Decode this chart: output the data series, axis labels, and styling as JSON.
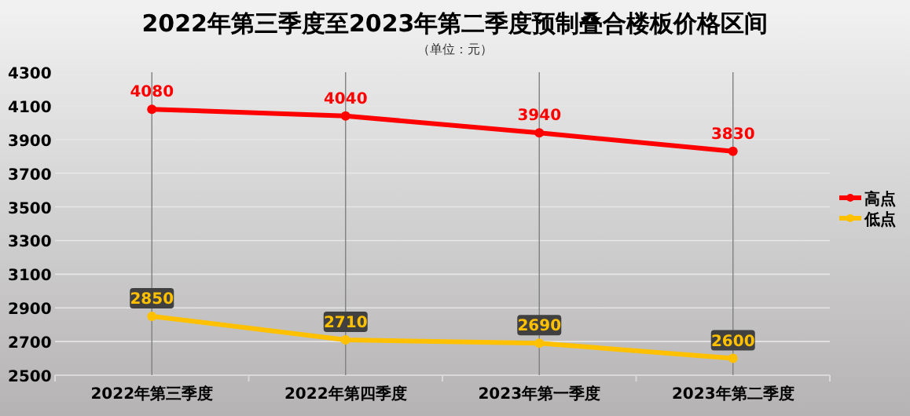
{
  "chart_data": {
    "type": "line",
    "title": "2022年第三季度至2023年第二季度预制叠合楼板价格区间",
    "subtitle": "（单位：元）",
    "categories": [
      "2022年第三季度",
      "2022年第四季度",
      "2023年第一季度",
      "2023年第二季度"
    ],
    "series": [
      {
        "name": "高点",
        "color": "#ff0000",
        "values": [
          4080,
          4040,
          3940,
          3830
        ]
      },
      {
        "name": "低点",
        "color": "#ffc000",
        "values": [
          2850,
          2710,
          2690,
          2600
        ]
      }
    ],
    "ylim": [
      2500,
      4300
    ],
    "yticks": [
      2500,
      2700,
      2900,
      3100,
      3300,
      3500,
      3700,
      3900,
      4100,
      4300
    ],
    "grid": true,
    "legend": "right",
    "data_labels": true,
    "marker": "circle",
    "line_style": "solid"
  }
}
